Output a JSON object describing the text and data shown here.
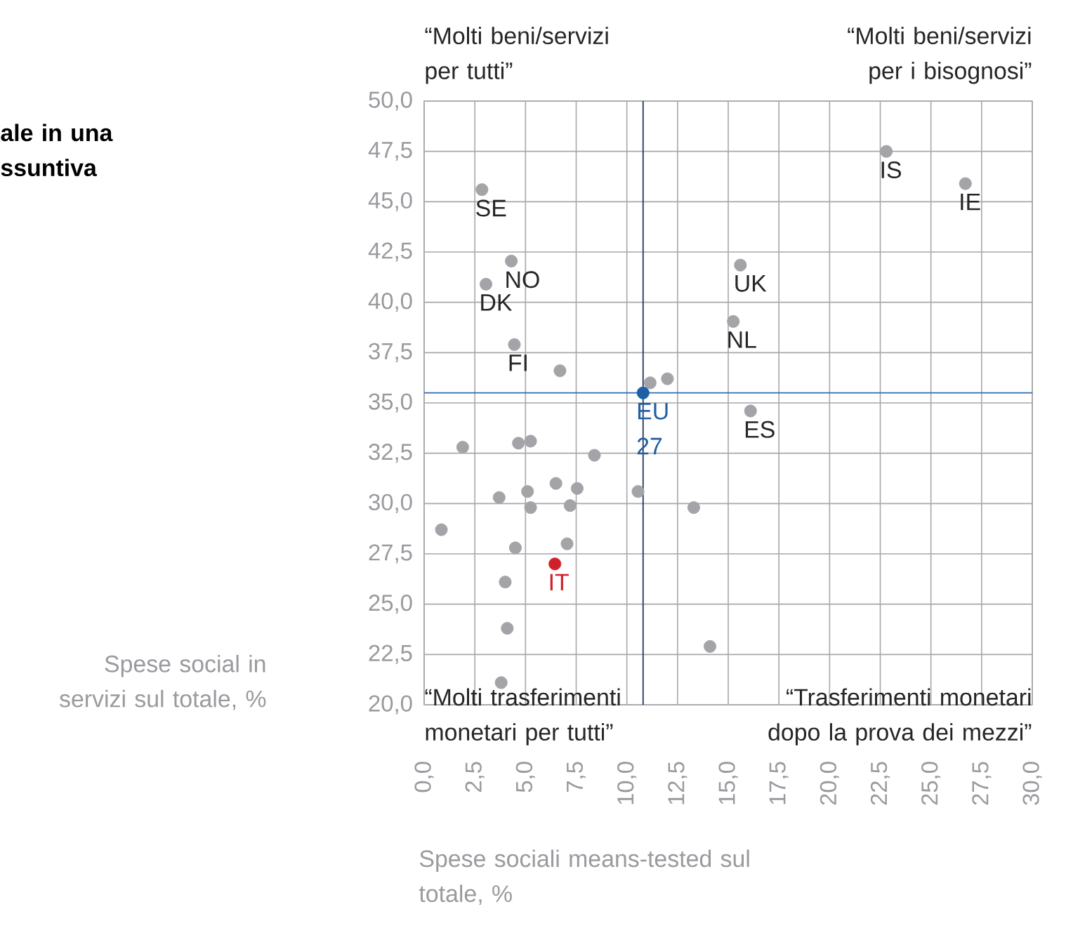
{
  "chart_data": {
    "type": "scatter",
    "title": "ale in una ssuntiva",
    "xlabel": "Spese sociali means-tested sul totale, %",
    "ylabel": "Spese social in servizi sul totale, %",
    "annotations": [
      "“Molti beni/servizi per tutti”",
      "“Molti beni/servizi per i bisognosi”",
      "“Molti trasferimenti monetari per tutti”",
      "“Trasferimenti monetari dopo la prova dei mezzi”"
    ],
    "xlim": [
      0,
      30
    ],
    "ylim": [
      20,
      50
    ],
    "xticks": [
      {
        "value": 0,
        "label": "0,0"
      },
      {
        "value": 2.5,
        "label": "2,5"
      },
      {
        "value": 5,
        "label": "5,0"
      },
      {
        "value": 7.5,
        "label": "7,5"
      },
      {
        "value": 10,
        "label": "10,0"
      },
      {
        "value": 12.5,
        "label": "12,5"
      },
      {
        "value": 15,
        "label": "15,0"
      },
      {
        "value": 17.5,
        "label": "17,5"
      },
      {
        "value": 20,
        "label": "20,0"
      },
      {
        "value": 22.5,
        "label": "22,5"
      },
      {
        "value": 25,
        "label": "25,0"
      },
      {
        "value": 27.5,
        "label": "27,5"
      },
      {
        "value": 30,
        "label": "30,0"
      }
    ],
    "yticks": [
      {
        "value": 20,
        "label": "20,0"
      },
      {
        "value": 22.5,
        "label": "22,5"
      },
      {
        "value": 25,
        "label": "25,0"
      },
      {
        "value": 27.5,
        "label": "27,5"
      },
      {
        "value": 30,
        "label": "30,0"
      },
      {
        "value": 32.5,
        "label": "32,5"
      },
      {
        "value": 35,
        "label": "35,0"
      },
      {
        "value": 37.5,
        "label": "37,5"
      },
      {
        "value": 40,
        "label": "40,0"
      },
      {
        "value": 42.5,
        "label": "42,5"
      },
      {
        "value": 45,
        "label": "45,0"
      },
      {
        "value": 47.5,
        "label": "47,5"
      },
      {
        "value": 50,
        "label": "50,0"
      }
    ],
    "grid": true,
    "marker": "circle",
    "ref_lines": [
      {
        "axis": "x",
        "value": 10.8,
        "color": "#23365e"
      },
      {
        "axis": "y",
        "value": 35.5,
        "color": "#2a6db5"
      }
    ],
    "series": [
      {
        "color": "#a3a3a8",
        "x": [
          2.85,
          4.3,
          3.05,
          4.45,
          6.7,
          11.15,
          12.0,
          15.6,
          15.25,
          16.1,
          22.8,
          26.7,
          1.9,
          4.65,
          5.25,
          8.4,
          3.7,
          5.1,
          6.5,
          7.55,
          10.55,
          5.25,
          7.2,
          13.3,
          0.85,
          4.5,
          7.05,
          4.0,
          4.1,
          14.1,
          3.8
        ],
        "values": [
          45.6,
          42.05,
          40.9,
          37.9,
          36.6,
          36.0,
          36.2,
          41.85,
          39.05,
          34.6,
          47.5,
          45.9,
          32.8,
          33.0,
          33.1,
          32.4,
          30.3,
          30.6,
          31.0,
          30.75,
          30.6,
          29.8,
          29.9,
          29.8,
          28.7,
          27.8,
          28.0,
          26.1,
          23.8,
          22.9,
          21.1
        ],
        "value_labels": [
          "SE",
          "NO",
          "DK",
          "FI",
          null,
          null,
          null,
          "UK",
          "NL",
          "ES",
          "IS",
          "IE",
          null,
          null,
          null,
          null,
          null,
          null,
          null,
          null,
          null,
          null,
          null,
          null,
          null,
          null,
          null,
          null,
          null,
          null,
          null
        ]
      },
      {
        "color": "#1f5fa6",
        "x": [
          10.8
        ],
        "values": [
          35.5
        ],
        "value_labels": [
          "EU 27"
        ]
      },
      {
        "color": "#d0202a",
        "x": [
          6.45
        ],
        "values": [
          27.0
        ],
        "value_labels": [
          "IT"
        ]
      }
    ]
  }
}
